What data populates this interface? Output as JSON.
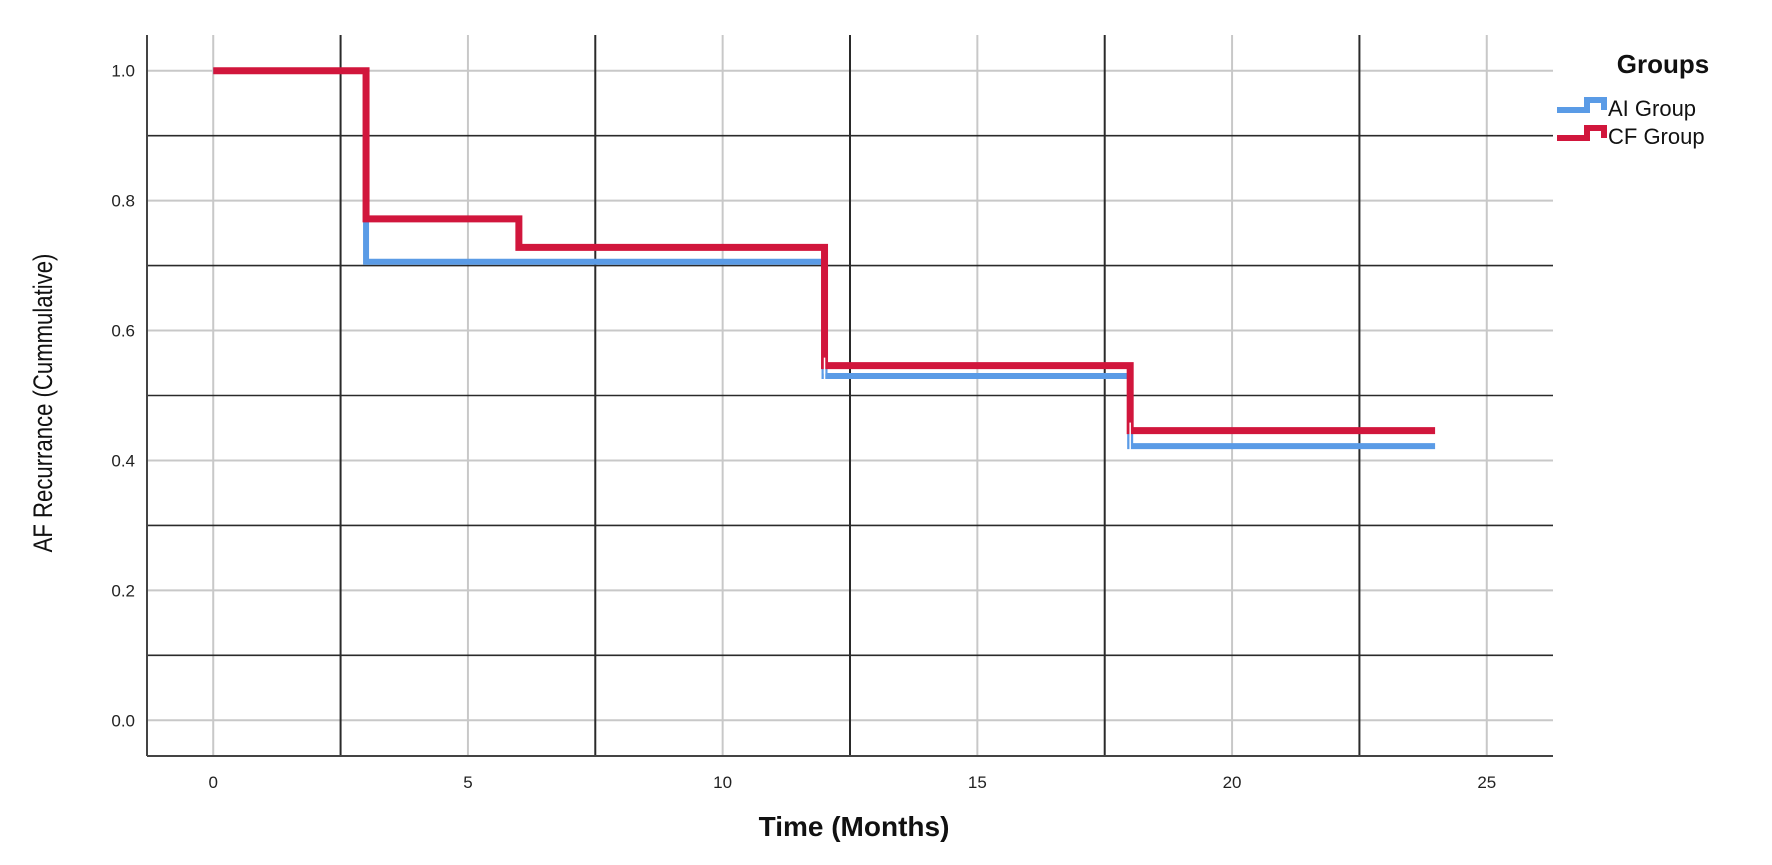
{
  "chart_data": {
    "type": "line",
    "subtype": "step (Kaplan-Meier)",
    "title": "",
    "xlabel": "Time (Months)",
    "ylabel": "AF Recurrance (Cummulative)",
    "xlim": [
      -1.3,
      26.3
    ],
    "ylim": [
      -0.055,
      1.055
    ],
    "x_ticks": [
      0,
      5,
      10,
      15,
      20,
      25
    ],
    "y_ticks": [
      0.0,
      0.2,
      0.4,
      0.6,
      0.8,
      1.0
    ],
    "x_tick_labels": [
      "0",
      "5",
      "10",
      "15",
      "20",
      "25"
    ],
    "y_tick_labels": [
      "0.0",
      "0.2",
      "0.4",
      "0.6",
      "0.8",
      "1.0"
    ],
    "major_grid_x": [
      2.5,
      7.5,
      12.5,
      17.5,
      22.5
    ],
    "major_grid_y": [
      0.1,
      0.3,
      0.5,
      0.7,
      0.9
    ],
    "grid": true,
    "legend": {
      "title": "Groups",
      "position": "top-right"
    },
    "series": [
      {
        "name": "AI Group",
        "color": "#5a9be6",
        "steps": [
          [
            0,
            1.0
          ],
          [
            3,
            0.706
          ],
          [
            12,
            0.53
          ],
          [
            18,
            0.422
          ],
          [
            24,
            0.422
          ]
        ],
        "censor_marks": [
          [
            12,
            0.53
          ],
          [
            18,
            0.422
          ],
          [
            24,
            0.422
          ]
        ]
      },
      {
        "name": "CF Group",
        "color": "#d1163c",
        "steps": [
          [
            0,
            1.0
          ],
          [
            3,
            0.772
          ],
          [
            6,
            0.728
          ],
          [
            12,
            0.546
          ],
          [
            18,
            0.446
          ],
          [
            24,
            0.446
          ]
        ],
        "censor_marks": [
          [
            12,
            0.546
          ],
          [
            18,
            0.446
          ],
          [
            24,
            0.446
          ]
        ]
      }
    ]
  }
}
